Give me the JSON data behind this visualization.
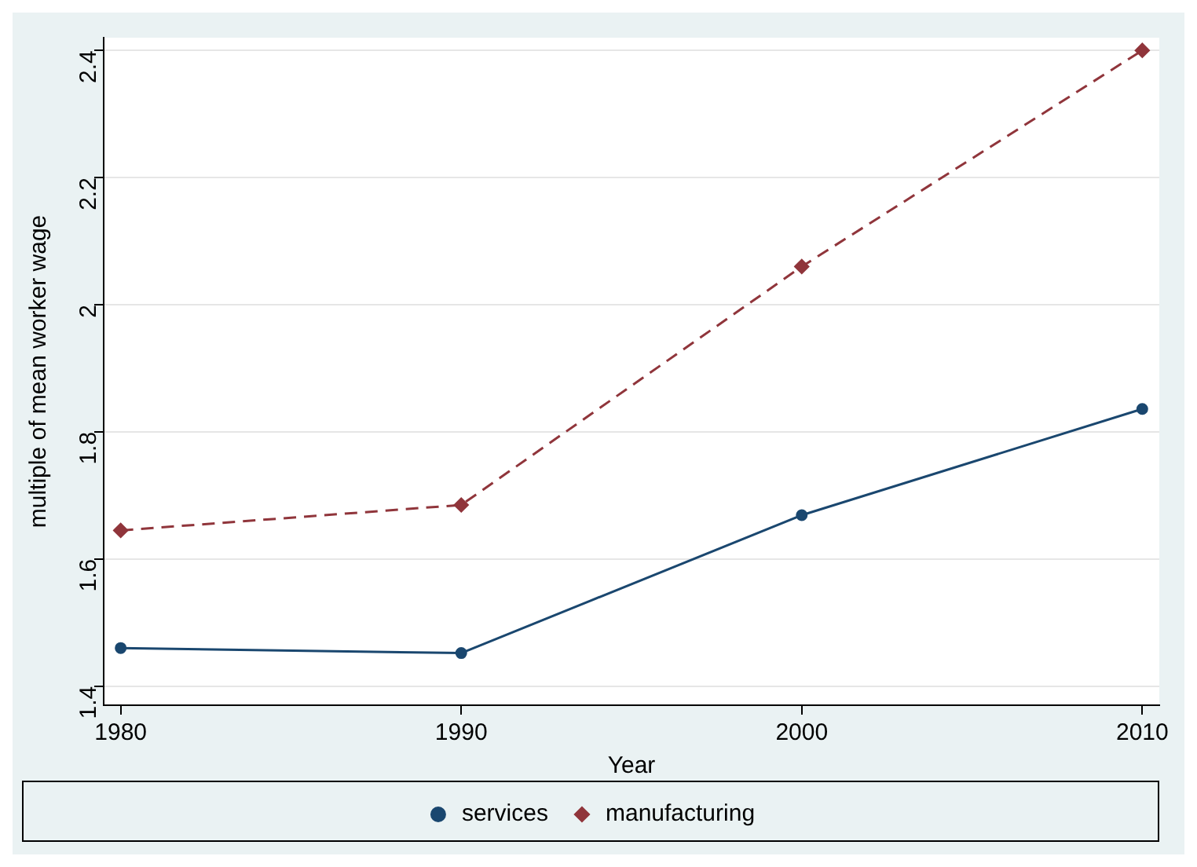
{
  "chart_data": {
    "type": "line",
    "xlabel": "Year",
    "ylabel": "multiple of mean worker wage",
    "x": [
      1980,
      1990,
      2000,
      2010
    ],
    "series": [
      {
        "name": "services",
        "color": "#1a476f",
        "values": [
          1.46,
          1.452,
          1.669,
          1.836
        ],
        "marker": "circle",
        "line_style": "solid"
      },
      {
        "name": "manufacturing",
        "color": "#90353b",
        "values": [
          1.645,
          1.685,
          2.06,
          2.4
        ],
        "marker": "diamond",
        "line_style": "dashed"
      }
    ],
    "xlim": [
      1979.5,
      2010.5
    ],
    "ylim": [
      1.37,
      2.42
    ],
    "xticks": [
      1980,
      1990,
      2000,
      2010
    ],
    "yticks": [
      1.4,
      1.6,
      1.8,
      2,
      2.2,
      2.4
    ],
    "grid": "y",
    "legend": "bottom"
  }
}
